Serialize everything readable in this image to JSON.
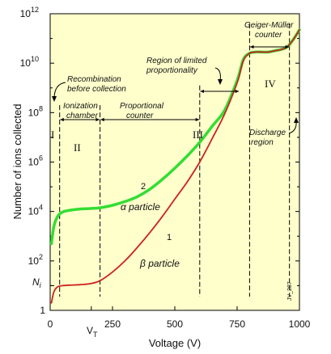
{
  "chart_data": {
    "type": "line",
    "xlabel": "Voltage (V)",
    "ylabel": "Number of ions collected",
    "xlim": [
      0,
      1000
    ],
    "ylog": true,
    "ylim_log10": [
      0,
      12
    ],
    "xticks": [
      {
        "v": 0,
        "label": "0"
      },
      {
        "v": 250,
        "label": "250"
      },
      {
        "v": 500,
        "label": "500"
      },
      {
        "v": 750,
        "label": "750"
      },
      {
        "v": 1000,
        "label": "1000"
      }
    ],
    "vt_label": "V",
    "vt_sub": "T",
    "vt_value": 165,
    "yticks": [
      {
        "e": 0,
        "base": "1",
        "exp": ""
      },
      {
        "e": 2,
        "base": "10",
        "exp": "2"
      },
      {
        "e": 4,
        "base": "10",
        "exp": "4"
      },
      {
        "e": 6,
        "base": "10",
        "exp": "6"
      },
      {
        "e": 8,
        "base": "10",
        "exp": "8"
      },
      {
        "e": 10,
        "base": "10",
        "exp": "10"
      },
      {
        "e": 12,
        "base": "10",
        "exp": "12"
      }
    ],
    "ni_label": "N",
    "ni_sub": "i",
    "ni_value_log10": 1.0,
    "boundaries": [
      {
        "x": 38,
        "y_top_log10": 8.3
      },
      {
        "x": 200,
        "y_top_log10": 8.3
      },
      {
        "x": 600,
        "y_top_log10": 9.1
      },
      {
        "x": 800,
        "y_top_log10": 11.6
      },
      {
        "x": 960,
        "y_top_log10": 11.6
      }
    ],
    "series": [
      {
        "name": "α particle",
        "number": "2",
        "color": "#33dd33",
        "x": [
          5,
          15,
          30,
          50,
          80,
          120,
          160,
          200,
          250,
          300,
          350,
          400,
          450,
          500,
          550,
          600,
          650,
          700,
          750,
          775,
          800,
          825,
          850,
          875,
          900,
          925,
          950,
          975,
          1000
        ],
        "y_log10": [
          2.7,
          3.4,
          3.8,
          3.98,
          4.05,
          4.1,
          4.12,
          4.15,
          4.25,
          4.4,
          4.6,
          4.9,
          5.3,
          5.75,
          6.25,
          6.8,
          7.45,
          8.1,
          9.3,
          10.15,
          10.4,
          10.45,
          10.45,
          10.45,
          10.5,
          10.55,
          10.65,
          10.95,
          11.35
        ]
      },
      {
        "name": "β particle",
        "number": "1",
        "color": "#cc2222",
        "x": [
          5,
          15,
          30,
          50,
          80,
          120,
          160,
          200,
          250,
          300,
          350,
          400,
          450,
          500,
          550,
          600,
          650,
          700,
          750,
          775,
          800,
          825,
          850,
          875,
          900,
          925,
          950,
          975,
          1000
        ],
        "y_log10": [
          0.3,
          0.75,
          0.95,
          1.0,
          1.02,
          1.04,
          1.08,
          1.2,
          1.55,
          2.0,
          2.55,
          3.15,
          3.8,
          4.5,
          5.2,
          6.0,
          6.95,
          7.95,
          9.2,
          10.1,
          10.4,
          10.45,
          10.45,
          10.45,
          10.5,
          10.55,
          10.65,
          10.95,
          11.35
        ]
      }
    ],
    "annotations": {
      "recombination": [
        "Recombination",
        "before collection"
      ],
      "ionization": [
        "Ionization",
        "chamber"
      ],
      "proportional": [
        "Proportional",
        "counter"
      ],
      "limited": [
        "Region of limited",
        "proportionality"
      ],
      "geiger": [
        "Geiger-Müller",
        "counter"
      ],
      "discharge": [
        "Discharge",
        "region"
      ],
      "region_I": "I",
      "region_II": "II",
      "region_III": "III",
      "region_IV": "IV",
      "code": "JV_287"
    },
    "colors": {
      "plot_bg": "#ffffcc",
      "axis": "#000000",
      "boundary": "#000000"
    }
  }
}
